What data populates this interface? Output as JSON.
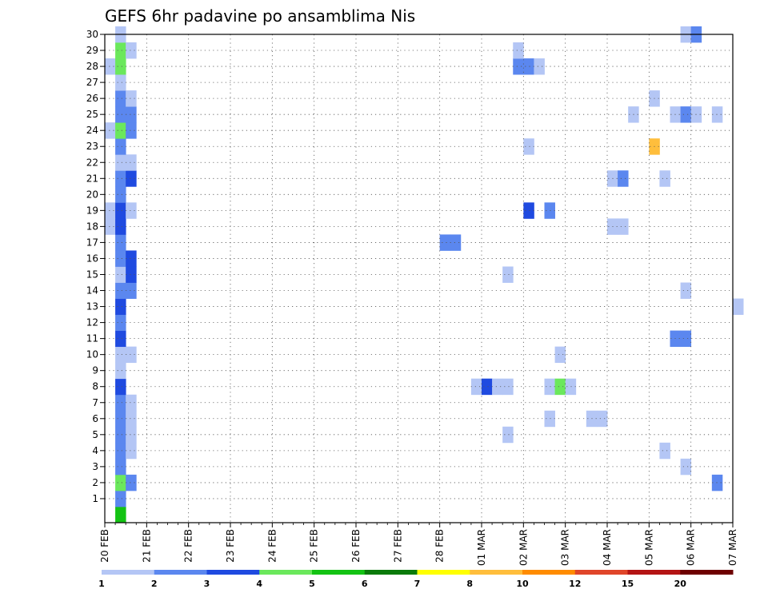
{
  "chart_data": {
    "type": "heatmap",
    "title": "GEFS 6hr padavine po ansamblima Nis",
    "xlabel": "",
    "ylabel": "",
    "x_ticks": [
      "20 FEB",
      "21 FEB",
      "22 FEB",
      "23 FEB",
      "24 FEB",
      "25 FEB",
      "26 FEB",
      "27 FEB",
      "28 FEB",
      "01 MAR",
      "02 MAR",
      "03 MAR",
      "04 MAR",
      "05 MAR",
      "06 MAR",
      "07 MAR"
    ],
    "x_range_days": [
      0,
      15
    ],
    "y_ticks": [
      "1",
      "2",
      "3",
      "4",
      "5",
      "6",
      "7",
      "8",
      "9",
      "10",
      "11",
      "12",
      "13",
      "14",
      "15",
      "16",
      "17",
      "18",
      "19",
      "20",
      "21",
      "22",
      "23",
      "24",
      "25",
      "26",
      "27",
      "28",
      "29",
      "30"
    ],
    "y_range": [
      0,
      30
    ],
    "grid": true,
    "legend": "colorbar-bottom",
    "colorbar": {
      "levels": [
        "1",
        "2",
        "3",
        "4",
        "5",
        "6",
        "7",
        "8",
        "10",
        "12",
        "15",
        "20"
      ],
      "colors": [
        "#b4c6f5",
        "#5b87ef",
        "#1f4ae0",
        "#6be85c",
        "#13c313",
        "#0a7a0a",
        "#ffff00",
        "#ffbe3c",
        "#ff8c00",
        "#e0462a",
        "#b41414",
        "#6e0000"
      ]
    },
    "cells": [
      {
        "t": 0.25,
        "m": 0,
        "c": 5
      },
      {
        "t": 0.25,
        "m": 1,
        "c": 2
      },
      {
        "t": 0.25,
        "m": 2,
        "c": 4
      },
      {
        "t": 0.5,
        "m": 2,
        "c": 2
      },
      {
        "t": 14.5,
        "m": 2,
        "c": 2
      },
      {
        "t": 0.25,
        "m": 3,
        "c": 2
      },
      {
        "t": 13.75,
        "m": 3,
        "c": 1
      },
      {
        "t": 0.25,
        "m": 4,
        "c": 2
      },
      {
        "t": 0.5,
        "m": 4,
        "c": 1
      },
      {
        "t": 13.25,
        "m": 4,
        "c": 1
      },
      {
        "t": 0.25,
        "m": 5,
        "c": 2
      },
      {
        "t": 0.5,
        "m": 5,
        "c": 1
      },
      {
        "t": 9.5,
        "m": 5,
        "c": 1
      },
      {
        "t": 0.25,
        "m": 6,
        "c": 2
      },
      {
        "t": 0.5,
        "m": 6,
        "c": 1
      },
      {
        "t": 10.5,
        "m": 6,
        "c": 1
      },
      {
        "t": 11.5,
        "m": 6,
        "c": 1
      },
      {
        "t": 11.75,
        "m": 6,
        "c": 1
      },
      {
        "t": 0.25,
        "m": 7,
        "c": 2
      },
      {
        "t": 0.5,
        "m": 7,
        "c": 1
      },
      {
        "t": 0.25,
        "m": 8,
        "c": 3
      },
      {
        "t": 8.75,
        "m": 8,
        "c": 1
      },
      {
        "t": 9.0,
        "m": 8,
        "c": 3
      },
      {
        "t": 9.25,
        "m": 8,
        "c": 1
      },
      {
        "t": 9.5,
        "m": 8,
        "c": 1
      },
      {
        "t": 10.5,
        "m": 8,
        "c": 1
      },
      {
        "t": 10.75,
        "m": 8,
        "c": 4
      },
      {
        "t": 11.0,
        "m": 8,
        "c": 1
      },
      {
        "t": 0.25,
        "m": 9,
        "c": 1
      },
      {
        "t": 0.25,
        "m": 10,
        "c": 1
      },
      {
        "t": 0.5,
        "m": 10,
        "c": 1
      },
      {
        "t": 10.75,
        "m": 10,
        "c": 1
      },
      {
        "t": 0.25,
        "m": 11,
        "c": 3
      },
      {
        "t": 13.5,
        "m": 11,
        "c": 2
      },
      {
        "t": 13.75,
        "m": 11,
        "c": 2
      },
      {
        "t": 0.25,
        "m": 12,
        "c": 2
      },
      {
        "t": 0.25,
        "m": 13,
        "c": 3
      },
      {
        "t": 15.0,
        "m": 13,
        "c": 1
      },
      {
        "t": 0.25,
        "m": 14,
        "c": 2
      },
      {
        "t": 0.5,
        "m": 14,
        "c": 2
      },
      {
        "t": 13.75,
        "m": 14,
        "c": 1
      },
      {
        "t": 0.25,
        "m": 15,
        "c": 1
      },
      {
        "t": 0.5,
        "m": 15,
        "c": 3
      },
      {
        "t": 9.5,
        "m": 15,
        "c": 1
      },
      {
        "t": 0.25,
        "m": 16,
        "c": 2
      },
      {
        "t": 0.5,
        "m": 16,
        "c": 3
      },
      {
        "t": 0.25,
        "m": 17,
        "c": 2
      },
      {
        "t": 8.0,
        "m": 17,
        "c": 2
      },
      {
        "t": 8.25,
        "m": 17,
        "c": 2
      },
      {
        "t": 0.0,
        "m": 18,
        "c": 1
      },
      {
        "t": 0.25,
        "m": 18,
        "c": 3
      },
      {
        "t": 12.0,
        "m": 18,
        "c": 1
      },
      {
        "t": 12.25,
        "m": 18,
        "c": 1
      },
      {
        "t": 0.0,
        "m": 19,
        "c": 1
      },
      {
        "t": 0.25,
        "m": 19,
        "c": 3
      },
      {
        "t": 0.5,
        "m": 19,
        "c": 1
      },
      {
        "t": 10.0,
        "m": 19,
        "c": 3
      },
      {
        "t": 10.5,
        "m": 19,
        "c": 2
      },
      {
        "t": 0.25,
        "m": 20,
        "c": 2
      },
      {
        "t": 0.25,
        "m": 21,
        "c": 2
      },
      {
        "t": 0.5,
        "m": 21,
        "c": 3
      },
      {
        "t": 12.0,
        "m": 21,
        "c": 1
      },
      {
        "t": 12.25,
        "m": 21,
        "c": 2
      },
      {
        "t": 13.25,
        "m": 21,
        "c": 1
      },
      {
        "t": 0.25,
        "m": 22,
        "c": 1
      },
      {
        "t": 0.5,
        "m": 22,
        "c": 1
      },
      {
        "t": 0.25,
        "m": 23,
        "c": 2
      },
      {
        "t": 10.0,
        "m": 23,
        "c": 1
      },
      {
        "t": 13.0,
        "m": 23,
        "c": 8
      },
      {
        "t": 0.0,
        "m": 24,
        "c": 1
      },
      {
        "t": 0.25,
        "m": 24,
        "c": 4
      },
      {
        "t": 0.5,
        "m": 24,
        "c": 2
      },
      {
        "t": 0.25,
        "m": 25,
        "c": 2
      },
      {
        "t": 0.5,
        "m": 25,
        "c": 2
      },
      {
        "t": 12.5,
        "m": 25,
        "c": 1
      },
      {
        "t": 13.5,
        "m": 25,
        "c": 1
      },
      {
        "t": 13.75,
        "m": 25,
        "c": 2
      },
      {
        "t": 14.0,
        "m": 25,
        "c": 1
      },
      {
        "t": 14.5,
        "m": 25,
        "c": 1
      },
      {
        "t": 0.25,
        "m": 26,
        "c": 2
      },
      {
        "t": 0.5,
        "m": 26,
        "c": 1
      },
      {
        "t": 13.0,
        "m": 26,
        "c": 1
      },
      {
        "t": 0.25,
        "m": 27,
        "c": 1
      },
      {
        "t": 0.0,
        "m": 28,
        "c": 1
      },
      {
        "t": 0.25,
        "m": 28,
        "c": 4
      },
      {
        "t": 9.75,
        "m": 28,
        "c": 2
      },
      {
        "t": 10.0,
        "m": 28,
        "c": 2
      },
      {
        "t": 10.25,
        "m": 28,
        "c": 1
      },
      {
        "t": 0.25,
        "m": 29,
        "c": 4
      },
      {
        "t": 0.5,
        "m": 29,
        "c": 1
      },
      {
        "t": 9.75,
        "m": 29,
        "c": 1
      },
      {
        "t": 0.25,
        "m": 30,
        "c": 1
      },
      {
        "t": 13.75,
        "m": 30,
        "c": 1
      },
      {
        "t": 14.0,
        "m": 30,
        "c": 2
      }
    ]
  }
}
